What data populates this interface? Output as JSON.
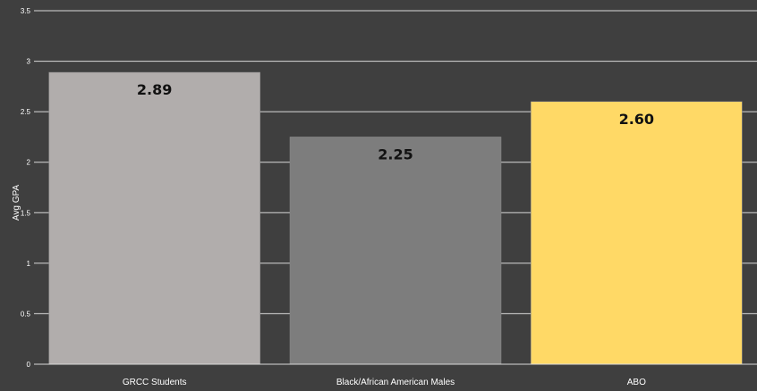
{
  "chart_data": {
    "type": "bar",
    "categories": [
      "GRCC Students",
      "Black/African American Males",
      "ABO"
    ],
    "values": [
      2.89,
      2.25,
      2.6
    ],
    "data_labels": [
      "2.89",
      "2.25",
      "2.60"
    ],
    "ylabel": "Avg GPA",
    "ylim": [
      0,
      3.5
    ],
    "yticks": [
      "0",
      "0.5",
      "1",
      "1.5",
      "2",
      "2.5",
      "3",
      "3.5"
    ],
    "grid": true,
    "colors": {
      "background": "#3f3f3f",
      "gridline": "#d9d9d9",
      "bars": [
        "#b1adac",
        "#7d7d7d",
        "#ffd966"
      ]
    }
  }
}
